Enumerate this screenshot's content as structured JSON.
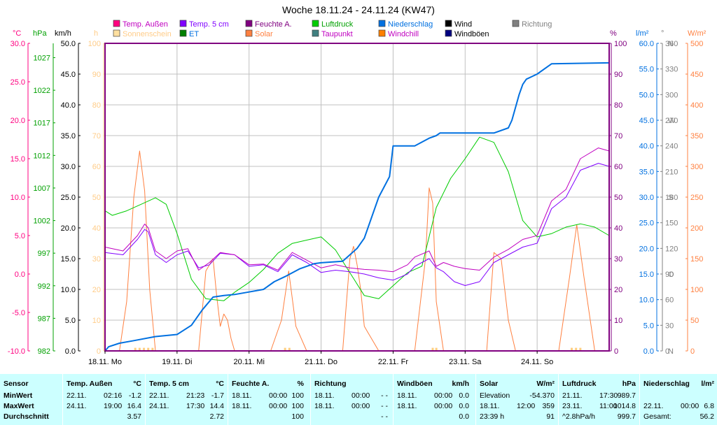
{
  "title": "Woche 18.11.24 - 24.11.24 (KW47)",
  "colors": {
    "frame": "#800080",
    "grid": "#c0c0c0",
    "temp_out": "#c000c0",
    "temp_5cm": "#8000ff",
    "humidity": "#800080",
    "pressure": "#00c000",
    "rain": "#0070e0",
    "solar": "#ff8040",
    "sunshine": "#ffcc80",
    "axis_temp": "#ff0080",
    "axis_hpa": "#00a000",
    "axis_kmh": "#000000",
    "axis_h": "#ffcc88",
    "axis_pct": "#800080",
    "axis_rain": "#0070e0",
    "axis_deg": "#808080",
    "axis_wm2": "#ff8040",
    "stats_bg": "#ccffff"
  },
  "legend": [
    {
      "label": "Temp. Außen",
      "color": "#ff0080",
      "text_color": "#c000c0"
    },
    {
      "label": "Temp. 5 cm",
      "color": "#8000ff",
      "text_color": "#8000ff"
    },
    {
      "label": "Feuchte A.",
      "color": "#800080",
      "text_color": "#800080"
    },
    {
      "label": "Luftdruck",
      "color": "#00cc00",
      "text_color": "#00a000"
    },
    {
      "label": "Niederschlag",
      "color": "#0070e0",
      "text_color": "#0070e0"
    },
    {
      "label": "Wind",
      "color": "#000000",
      "text_color": "#000000"
    },
    {
      "label": "Richtung",
      "color": "#808080",
      "text_color": "#808080"
    },
    {
      "label": "Sonnenschein",
      "color": "#ffe0a0",
      "text_color": "#ffcc88"
    },
    {
      "label": "ET",
      "color": "#008000",
      "text_color": "#0070e0"
    },
    {
      "label": "Solar",
      "color": "#ff8040",
      "text_color": "#ff8040"
    },
    {
      "label": "Taupunkt",
      "color": "#408080",
      "text_color": "#c000c0"
    },
    {
      "label": "Windchill",
      "color": "#ff8000",
      "text_color": "#c000c0"
    },
    {
      "label": "Windböen",
      "color": "#000080",
      "text_color": "#000000"
    }
  ],
  "axis_units": {
    "temp": "°C",
    "hpa": "hPa",
    "kmh": "km/h",
    "hours": "h",
    "pct": "%",
    "rain": "l/m²",
    "deg": "°",
    "wm2": "W/m²"
  },
  "chart_data": {
    "type": "line",
    "title": "Woche 18.11.24 - 24.11.24 (KW47)",
    "x_range_days": [
      0,
      7
    ],
    "x_ticks": [
      "18.11. Mo",
      "19.11. Di",
      "20.11. Mi",
      "21.11. Do",
      "22.11. Fr",
      "23.11. Sa",
      "24.11. So"
    ],
    "axes": {
      "temp": {
        "ticks": [
          "-10.0",
          "-5.0",
          "0.0",
          "5.0",
          "10.0",
          "15.0",
          "20.0",
          "25.0",
          "30.0"
        ],
        "range": [
          -10,
          30
        ]
      },
      "hpa": {
        "ticks": [
          "982",
          "987",
          "992",
          "997",
          "1002",
          "1007",
          "1012",
          "1017",
          "1022",
          "1027"
        ],
        "range": [
          982,
          1029.2
        ]
      },
      "kmh": {
        "ticks": [
          "0.0",
          "5.0",
          "10.0",
          "15.0",
          "20.0",
          "25.0",
          "30.0",
          "35.0",
          "40.0",
          "45.0",
          "50.0"
        ],
        "range": [
          0,
          50
        ]
      },
      "hours": {
        "ticks": [
          "0",
          "10",
          "20",
          "30",
          "40",
          "50",
          "60",
          "70",
          "80",
          "90",
          "100"
        ],
        "range": [
          0,
          100
        ]
      },
      "pct": {
        "ticks": [
          "0",
          "10",
          "20",
          "30",
          "40",
          "50",
          "60",
          "70",
          "80",
          "90",
          "100"
        ],
        "range": [
          0,
          100
        ]
      },
      "rain": {
        "ticks": [
          "0.0",
          "5.0",
          "10.0",
          "15.0",
          "20.0",
          "25.0",
          "30.0",
          "35.0",
          "40.0",
          "45.0",
          "50.0",
          "55.0",
          "60.0"
        ],
        "range": [
          0,
          60
        ]
      },
      "deg": {
        "ticks": [
          "0",
          "30",
          "60",
          "90",
          "120",
          "150",
          "180",
          "210",
          "240",
          "270",
          "300",
          "330",
          "360"
        ],
        "labels": [
          "N",
          "",
          "",
          "O",
          "",
          "",
          "S",
          "",
          "",
          "W",
          "",
          "",
          "N"
        ],
        "range": [
          0,
          360
        ]
      },
      "wm2": {
        "ticks": [
          "0",
          "50",
          "100",
          "150",
          "200",
          "250",
          "300",
          "350",
          "400",
          "450",
          "500"
        ],
        "range": [
          0,
          500
        ]
      }
    },
    "series": [
      {
        "name": "Temp. Außen",
        "axis": "temp",
        "color": "#c000c0",
        "x": [
          0,
          0.25,
          0.45,
          0.55,
          0.6,
          0.7,
          0.85,
          1.0,
          1.15,
          1.3,
          1.45,
          1.6,
          1.8,
          2.0,
          2.2,
          2.4,
          2.6,
          2.8,
          3.0,
          3.2,
          3.4,
          3.6,
          3.8,
          4.0,
          4.2,
          4.3,
          4.5,
          4.6,
          4.7,
          4.85,
          5.0,
          5.2,
          5.4,
          5.6,
          5.8,
          6.0,
          6.2,
          6.4,
          6.6,
          6.85,
          7.0
        ],
        "y": [
          3.5,
          3.0,
          5.0,
          6.5,
          6.0,
          3.0,
          2.0,
          3.0,
          3.3,
          0.5,
          1.5,
          2.8,
          2.5,
          1.2,
          1.3,
          0.5,
          2.8,
          1.8,
          0.8,
          1.2,
          0.8,
          0.6,
          0.5,
          0.3,
          1.2,
          2.2,
          3.0,
          1.0,
          1.5,
          1.0,
          0.7,
          0.5,
          2.2,
          3.2,
          4.5,
          5.0,
          9.5,
          11.0,
          15.0,
          16.4,
          16.0
        ]
      },
      {
        "name": "Temp. 5 cm",
        "axis": "temp",
        "color": "#8000ff",
        "x": [
          0,
          0.25,
          0.45,
          0.55,
          0.6,
          0.7,
          0.85,
          1.0,
          1.15,
          1.3,
          1.45,
          1.6,
          1.8,
          2.0,
          2.2,
          2.4,
          2.6,
          2.8,
          3.0,
          3.2,
          3.4,
          3.6,
          3.8,
          4.0,
          4.2,
          4.3,
          4.5,
          4.6,
          4.7,
          4.85,
          5.0,
          5.2,
          5.4,
          5.6,
          5.8,
          6.0,
          6.2,
          6.4,
          6.6,
          6.85,
          7.0
        ],
        "y": [
          2.8,
          2.5,
          4.5,
          5.8,
          5.5,
          2.5,
          1.5,
          2.5,
          3.0,
          0.8,
          1.2,
          2.7,
          2.5,
          1.0,
          1.2,
          0.3,
          2.5,
          1.5,
          0.2,
          0.5,
          0.3,
          0.0,
          -0.5,
          -0.8,
          0.0,
          1.0,
          2.0,
          0.8,
          0.3,
          -1.0,
          -1.5,
          -1.0,
          1.5,
          2.5,
          3.5,
          4.0,
          8.5,
          10.0,
          13.5,
          14.4,
          14.0
        ]
      },
      {
        "name": "Luftdruck",
        "axis": "hpa",
        "color": "#00cc00",
        "x": [
          0,
          0.1,
          0.3,
          0.5,
          0.7,
          0.85,
          1.0,
          1.2,
          1.4,
          1.65,
          1.8,
          2.0,
          2.2,
          2.4,
          2.6,
          2.8,
          3.0,
          3.2,
          3.4,
          3.6,
          3.8,
          4.0,
          4.2,
          4.4,
          4.6,
          4.8,
          5.0,
          5.2,
          5.4,
          5.6,
          5.8,
          6.0,
          6.2,
          6.4,
          6.6,
          6.8,
          7.0
        ],
        "y": [
          1003.5,
          1002.8,
          1003.5,
          1004.5,
          1005.5,
          1004.5,
          1000.0,
          993.0,
          990.0,
          989.7,
          991.0,
          992.5,
          994.5,
          997.0,
          998.5,
          999.0,
          999.5,
          997.5,
          994.0,
          990.5,
          990.0,
          992.0,
          994.0,
          995.0,
          1004.0,
          1008.5,
          1011.5,
          1014.8,
          1014.0,
          1009.5,
          1002.0,
          999.5,
          1000.0,
          1001.0,
          1001.5,
          1001.0,
          999.7
        ]
      },
      {
        "name": "Niederschlag",
        "axis": "rain",
        "color": "#0070e0",
        "x": [
          0,
          0.05,
          0.2,
          0.4,
          0.7,
          1.0,
          1.2,
          1.35,
          1.5,
          1.65,
          1.8,
          2.0,
          2.2,
          2.35,
          2.5,
          2.7,
          2.9,
          3.0,
          3.3,
          3.5,
          3.6,
          3.7,
          3.8,
          3.95,
          4.0,
          4.3,
          4.5,
          4.6,
          4.65,
          5.0,
          5.4,
          5.6,
          5.65,
          5.75,
          5.8,
          5.85,
          6.0,
          6.2,
          7.0
        ],
        "y": [
          0,
          0.8,
          1.5,
          2.0,
          2.8,
          3.2,
          5.0,
          8.0,
          10.5,
          10.8,
          11.0,
          11.5,
          12.0,
          13.5,
          14.5,
          16.0,
          17.0,
          17.2,
          17.5,
          20.0,
          22.0,
          26.0,
          30.0,
          34.0,
          40.0,
          40.0,
          41.5,
          42.0,
          42.5,
          42.5,
          42.5,
          43.5,
          45.0,
          50.0,
          52.0,
          53.0,
          54.0,
          56.0,
          56.2
        ]
      },
      {
        "name": "Solar",
        "axis": "wm2",
        "color": "#ff8040",
        "x": [
          0,
          0.2,
          0.3,
          0.4,
          0.48,
          0.55,
          0.62,
          0.7,
          0.8,
          1.0,
          1.3,
          1.4,
          1.5,
          1.55,
          1.6,
          1.65,
          1.7,
          1.75,
          1.8,
          1.85,
          2.0,
          2.3,
          2.45,
          2.55,
          2.65,
          2.8,
          3.0,
          3.3,
          3.4,
          3.45,
          3.5,
          3.55,
          3.6,
          3.65,
          3.7,
          3.8,
          4.0,
          4.3,
          4.45,
          4.5,
          4.55,
          4.6,
          4.7,
          4.8,
          5.0,
          5.3,
          5.4,
          5.5,
          5.6,
          5.7,
          5.8,
          6.0,
          6.3,
          6.45,
          6.55,
          6.65,
          6.8,
          7.0
        ],
        "y": [
          0,
          0,
          80,
          250,
          325,
          260,
          100,
          0,
          0,
          0,
          0,
          130,
          150,
          90,
          40,
          60,
          50,
          20,
          0,
          0,
          0,
          0,
          50,
          130,
          40,
          0,
          0,
          0,
          150,
          170,
          140,
          100,
          40,
          30,
          20,
          0,
          0,
          0,
          150,
          265,
          240,
          80,
          0,
          0,
          0,
          0,
          160,
          150,
          50,
          0,
          0,
          0,
          0,
          120,
          205,
          120,
          0,
          0
        ]
      },
      {
        "name": "Sonnenschein",
        "axis": "hours",
        "color": "#ffcc80",
        "x": [
          0.42,
          0.48,
          0.54,
          0.6,
          0.66,
          2.5,
          2.56,
          4.55,
          4.6,
          6.48,
          6.54,
          6.6
        ],
        "y": [
          1,
          1,
          1,
          1,
          1,
          1,
          1,
          1,
          1,
          1,
          1,
          1
        ]
      }
    ]
  },
  "stats": {
    "columns": [
      {
        "header": "Sensor",
        "unit": "",
        "rows": [
          [
            "MinWert",
            "",
            ""
          ],
          [
            "MaxWert",
            "",
            ""
          ],
          [
            "Durchschnitt",
            "",
            ""
          ]
        ]
      },
      {
        "header": "Temp. Außen",
        "unit": "°C",
        "rows": [
          [
            "22.11.",
            "02:16",
            "-1.2"
          ],
          [
            "24.11.",
            "19:00",
            "16.4"
          ],
          [
            "",
            "",
            "3.57"
          ]
        ]
      },
      {
        "header": "Temp. 5 cm",
        "unit": "°C",
        "rows": [
          [
            "22.11.",
            "21:23",
            "-1.7"
          ],
          [
            "24.11.",
            "17:30",
            "14.4"
          ],
          [
            "",
            "",
            "2.72"
          ]
        ]
      },
      {
        "header": "Feuchte A.",
        "unit": "%",
        "rows": [
          [
            "18.11.",
            "00:00",
            "100"
          ],
          [
            "18.11.",
            "00:00",
            "100"
          ],
          [
            "",
            "",
            "100"
          ]
        ]
      },
      {
        "header": "Richtung",
        "unit": "",
        "rows": [
          [
            "18.11.",
            "00:00",
            "- -"
          ],
          [
            "18.11.",
            "00:00",
            "- -"
          ],
          [
            "",
            "",
            "- -"
          ]
        ]
      },
      {
        "header": "Windböen",
        "unit": "km/h",
        "rows": [
          [
            "18.11.",
            "00:00",
            "0.0"
          ],
          [
            "18.11.",
            "00:00",
            "0.0"
          ],
          [
            "",
            "",
            "0.0"
          ]
        ]
      },
      {
        "header": "Solar",
        "unit": "W/m²",
        "rows": [
          [
            "Elevation",
            "",
            "-54.370"
          ],
          [
            "18.11.",
            "12:00",
            "359"
          ],
          [
            "23:39 h",
            "",
            "91"
          ]
        ]
      },
      {
        "header": "Luftdruck",
        "unit": "hPa",
        "rows": [
          [
            "21.11.",
            "17:30",
            "989.7"
          ],
          [
            "23.11.",
            "11:00",
            "1014.8"
          ],
          [
            "^2.8hPa/h",
            "",
            "999.7"
          ]
        ]
      },
      {
        "header": "Niederschlag",
        "unit": "l/m²",
        "rows": [
          [
            "",
            "",
            ""
          ],
          [
            "22.11.",
            "00:00",
            "6.8"
          ],
          [
            "Gesamt:",
            "",
            "56.2"
          ]
        ]
      }
    ]
  }
}
